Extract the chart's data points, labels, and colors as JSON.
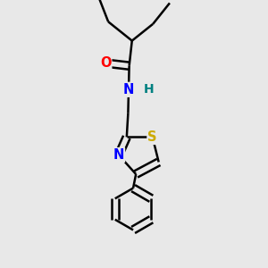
{
  "background_color": "#e8e8e8",
  "bond_color": "#000000",
  "atom_colors": {
    "O": "#ff0000",
    "N": "#0000ff",
    "H": "#008080",
    "S": "#ccaa00",
    "C": "#000000"
  },
  "bond_width": 1.8,
  "font_size": 10.5
}
